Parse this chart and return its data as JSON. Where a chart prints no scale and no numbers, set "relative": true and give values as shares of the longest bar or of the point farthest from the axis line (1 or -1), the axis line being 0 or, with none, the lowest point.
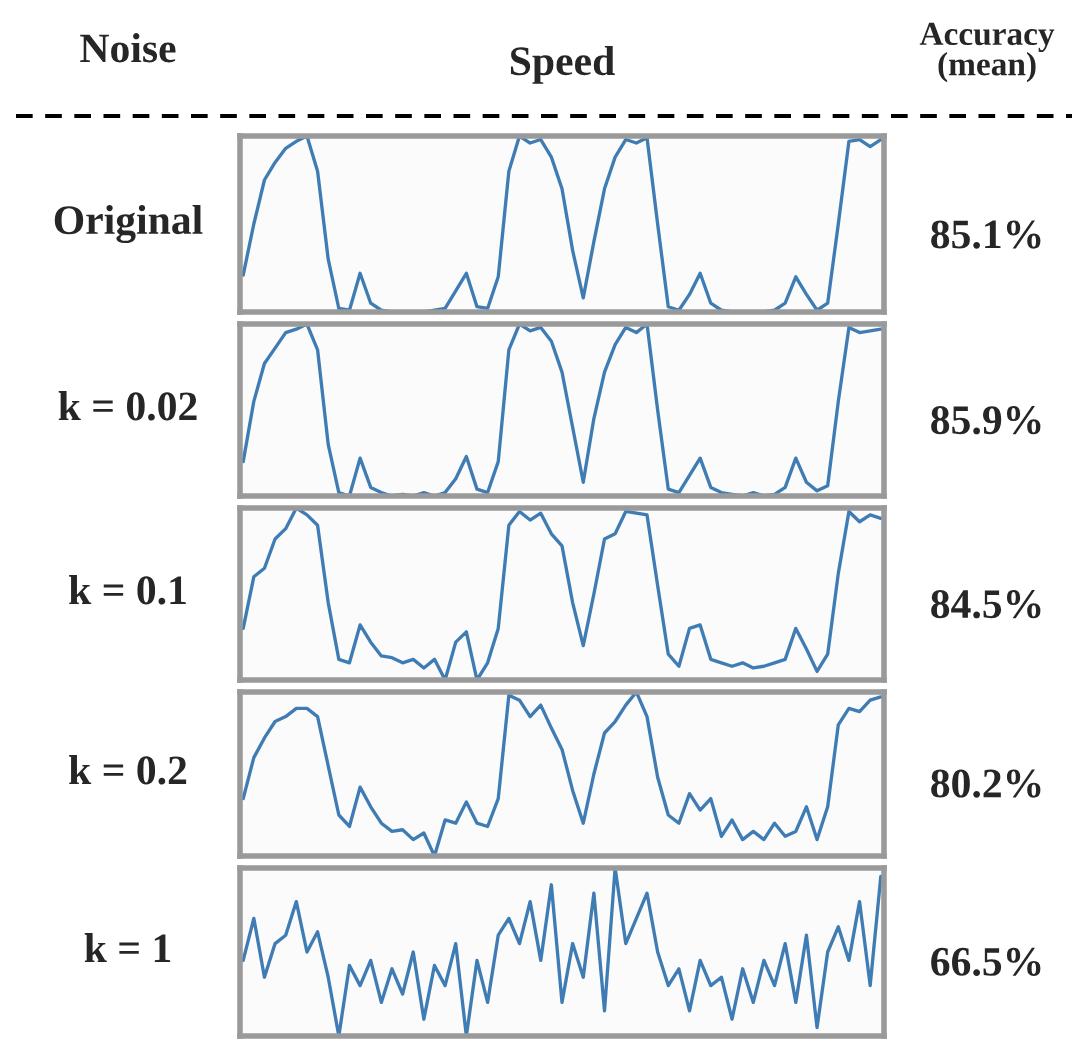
{
  "chart_data": [
    {
      "type": "line",
      "title": "Speed",
      "ylabel": "Original",
      "relative": true,
      "annotations": [
        "Noise",
        "Accuracy\n(mean)",
        "85.1%"
      ],
      "categories": [
        null,
        null,
        null,
        null,
        null,
        null,
        null,
        null,
        null,
        null,
        null,
        null,
        null,
        null,
        null,
        null,
        null,
        null,
        null,
        null,
        null,
        null,
        null,
        null,
        null,
        null,
        null,
        null,
        null,
        null,
        null,
        null,
        null,
        null,
        null,
        null,
        null,
        null,
        null,
        null,
        null,
        null,
        null,
        null,
        null,
        null,
        null,
        null,
        null,
        null,
        null,
        null,
        null,
        null,
        null,
        null,
        null,
        null,
        null,
        null,
        null
      ],
      "series": [
        {
          "color": "#3f7cb4",
          "values": [
            0.21,
            0.5,
            0.75,
            0.85,
            0.93,
            0.97,
            1.0,
            0.8,
            0.3,
            0.02,
            0.01,
            0.22,
            0.05,
            0.01,
            0.0,
            0.0,
            0.0,
            0.0,
            0.01,
            0.02,
            0.12,
            0.22,
            0.03,
            0.02,
            0.2,
            0.8,
            1.0,
            0.96,
            0.98,
            0.88,
            0.7,
            0.35,
            0.08,
            0.4,
            0.7,
            0.88,
            0.98,
            0.96,
            0.99,
            0.5,
            0.03,
            0.01,
            0.1,
            0.22,
            0.05,
            0.01,
            0.0,
            0.0,
            0.0,
            0.0,
            0.01,
            0.05,
            0.2,
            0.1,
            0.01,
            0.05,
            0.5,
            0.97,
            0.98,
            0.94,
            0.98
          ]
        }
      ]
    },
    {
      "type": "line",
      "ylabel": "k = 0.02",
      "relative": true,
      "annotations": [
        "85.9%"
      ],
      "categories": [
        null,
        null,
        null,
        null,
        null,
        null,
        null,
        null,
        null,
        null,
        null,
        null,
        null,
        null,
        null,
        null,
        null,
        null,
        null,
        null,
        null,
        null,
        null,
        null,
        null,
        null,
        null,
        null,
        null,
        null,
        null,
        null,
        null,
        null,
        null,
        null,
        null,
        null,
        null,
        null,
        null,
        null,
        null,
        null,
        null,
        null,
        null,
        null,
        null,
        null,
        null,
        null,
        null,
        null,
        null,
        null,
        null,
        null,
        null,
        null,
        null
      ],
      "series": [
        {
          "color": "#3f7cb4",
          "values": [
            0.2,
            0.55,
            0.77,
            0.86,
            0.95,
            0.97,
            1.0,
            0.85,
            0.3,
            0.02,
            0.0,
            0.22,
            0.05,
            0.02,
            0.0,
            0.01,
            0.0,
            0.02,
            0.0,
            0.02,
            0.1,
            0.23,
            0.04,
            0.02,
            0.2,
            0.85,
            1.0,
            0.96,
            0.98,
            0.9,
            0.72,
            0.4,
            0.08,
            0.45,
            0.72,
            0.88,
            0.98,
            0.95,
            1.0,
            0.5,
            0.04,
            0.02,
            0.12,
            0.22,
            0.05,
            0.02,
            0.01,
            0.0,
            0.02,
            0.0,
            0.01,
            0.05,
            0.22,
            0.08,
            0.03,
            0.06,
            0.55,
            0.98,
            0.95,
            0.96,
            0.97
          ]
        }
      ]
    },
    {
      "type": "line",
      "ylabel": "k = 0.1",
      "relative": true,
      "annotations": [
        "84.5%"
      ],
      "categories": [
        null,
        null,
        null,
        null,
        null,
        null,
        null,
        null,
        null,
        null,
        null,
        null,
        null,
        null,
        null,
        null,
        null,
        null,
        null,
        null,
        null,
        null,
        null,
        null,
        null,
        null,
        null,
        null,
        null,
        null,
        null,
        null,
        null,
        null,
        null,
        null,
        null,
        null,
        null,
        null,
        null,
        null,
        null,
        null,
        null,
        null,
        null,
        null,
        null,
        null,
        null,
        null,
        null,
        null,
        null,
        null,
        null,
        null,
        null,
        null,
        null
      ],
      "series": [
        {
          "color": "#3f7cb4",
          "values": [
            0.3,
            0.6,
            0.65,
            0.82,
            0.88,
            1.0,
            0.96,
            0.9,
            0.45,
            0.12,
            0.1,
            0.32,
            0.22,
            0.14,
            0.13,
            0.1,
            0.12,
            0.07,
            0.12,
            0.0,
            0.22,
            0.28,
            0.0,
            0.1,
            0.3,
            0.9,
            0.98,
            0.93,
            0.97,
            0.85,
            0.78,
            0.45,
            0.2,
            0.5,
            0.82,
            0.85,
            0.98,
            0.97,
            0.96,
            0.55,
            0.15,
            0.08,
            0.3,
            0.32,
            0.12,
            0.1,
            0.08,
            0.1,
            0.07,
            0.08,
            0.1,
            0.12,
            0.3,
            0.18,
            0.05,
            0.15,
            0.62,
            0.98,
            0.92,
            0.96,
            0.94
          ]
        }
      ]
    },
    {
      "type": "line",
      "ylabel": "k = 0.2",
      "relative": true,
      "annotations": [
        "80.2%"
      ],
      "categories": [
        null,
        null,
        null,
        null,
        null,
        null,
        null,
        null,
        null,
        null,
        null,
        null,
        null,
        null,
        null,
        null,
        null,
        null,
        null,
        null,
        null,
        null,
        null,
        null,
        null,
        null,
        null,
        null,
        null,
        null,
        null,
        null,
        null,
        null,
        null,
        null,
        null,
        null,
        null,
        null,
        null,
        null,
        null,
        null,
        null,
        null,
        null,
        null,
        null,
        null,
        null,
        null,
        null,
        null,
        null,
        null,
        null,
        null,
        null,
        null,
        null
      ],
      "series": [
        {
          "color": "#3f7cb4",
          "values": [
            0.35,
            0.6,
            0.72,
            0.82,
            0.85,
            0.9,
            0.9,
            0.85,
            0.55,
            0.25,
            0.18,
            0.42,
            0.3,
            0.2,
            0.15,
            0.16,
            0.1,
            0.14,
            0.0,
            0.22,
            0.2,
            0.33,
            0.2,
            0.18,
            0.35,
            0.98,
            0.95,
            0.85,
            0.92,
            0.78,
            0.65,
            0.4,
            0.2,
            0.5,
            0.75,
            0.82,
            0.92,
            1.0,
            0.85,
            0.48,
            0.25,
            0.2,
            0.38,
            0.28,
            0.35,
            0.12,
            0.22,
            0.1,
            0.15,
            0.1,
            0.2,
            0.12,
            0.15,
            0.3,
            0.1,
            0.3,
            0.8,
            0.9,
            0.88,
            0.95,
            0.97
          ]
        }
      ]
    },
    {
      "type": "line",
      "ylabel": "k = 1",
      "relative": true,
      "annotations": [
        "66.5%"
      ],
      "categories": [
        null,
        null,
        null,
        null,
        null,
        null,
        null,
        null,
        null,
        null,
        null,
        null,
        null,
        null,
        null,
        null,
        null,
        null,
        null,
        null,
        null,
        null,
        null,
        null,
        null,
        null,
        null,
        null,
        null,
        null,
        null,
        null,
        null,
        null,
        null,
        null,
        null,
        null,
        null,
        null,
        null,
        null,
        null,
        null,
        null,
        null,
        null,
        null,
        null,
        null,
        null,
        null,
        null,
        null,
        null,
        null,
        null,
        null,
        null,
        null,
        null
      ],
      "series": [
        {
          "color": "#3f7cb4",
          "values": [
            0.45,
            0.7,
            0.35,
            0.55,
            0.6,
            0.8,
            0.5,
            0.62,
            0.35,
            0.0,
            0.42,
            0.3,
            0.45,
            0.2,
            0.4,
            0.25,
            0.5,
            0.1,
            0.42,
            0.3,
            0.55,
            0.0,
            0.45,
            0.2,
            0.6,
            0.7,
            0.55,
            0.8,
            0.45,
            0.9,
            0.2,
            0.55,
            0.35,
            0.85,
            0.15,
            1.0,
            0.55,
            0.7,
            0.85,
            0.5,
            0.3,
            0.4,
            0.15,
            0.45,
            0.3,
            0.35,
            0.1,
            0.4,
            0.2,
            0.45,
            0.3,
            0.55,
            0.2,
            0.6,
            0.05,
            0.5,
            0.65,
            0.45,
            0.8,
            0.3,
            0.95
          ]
        }
      ]
    }
  ]
}
